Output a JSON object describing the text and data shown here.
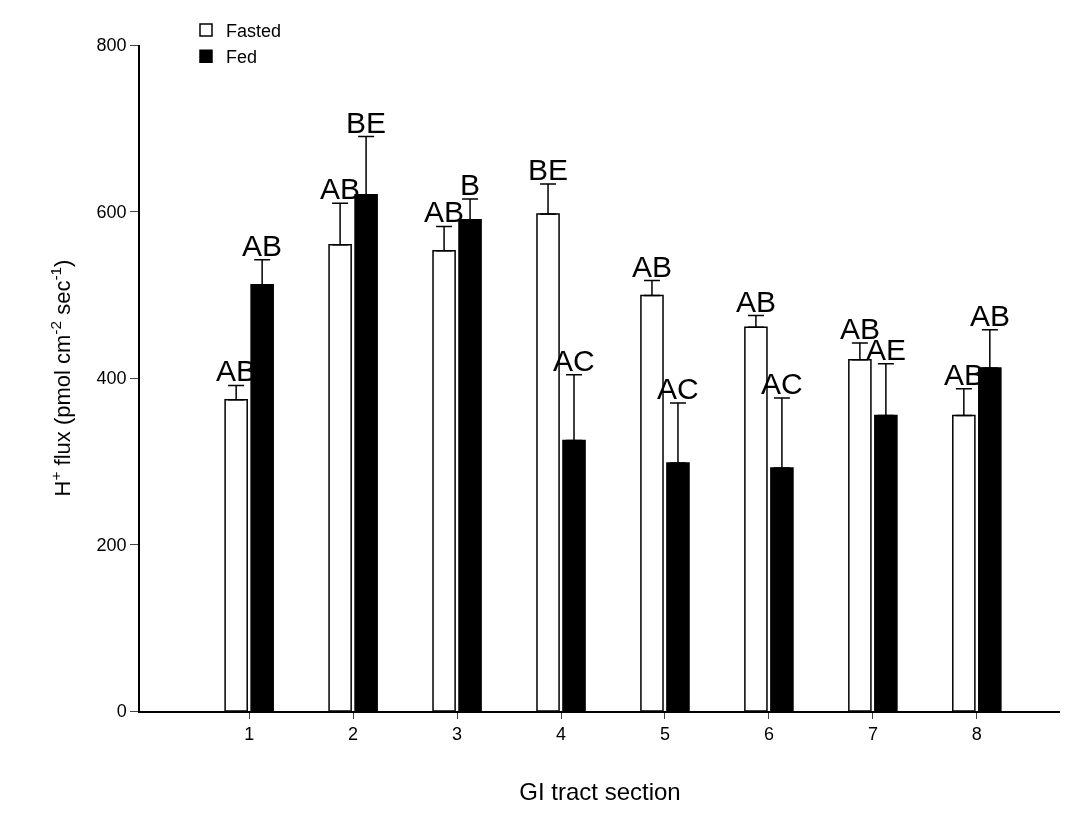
{
  "chart_data": {
    "type": "bar",
    "xlabel": "GI tract section",
    "ylabel": "H$^{+}$ flux (pmol cm$^{-2}$ sec$^{-1}$)",
    "categories": [
      "1",
      "2",
      "3",
      "4",
      "5",
      "6",
      "7",
      "8"
    ],
    "series": [
      {
        "name": "Fasted",
        "color": "#ffffff",
        "values": [
          374,
          560,
          553,
          597,
          499,
          461,
          422,
          355
        ],
        "errors": [
          [
            374,
            391
          ],
          [
            560,
            610
          ],
          [
            553,
            582
          ],
          [
            597,
            633
          ],
          [
            499,
            517
          ],
          [
            461,
            475
          ],
          [
            422,
            442
          ],
          [
            355,
            387
          ]
        ],
        "value_labels": [
          "AB",
          "AB",
          "AB",
          "BE",
          "AB",
          "AB",
          "AB",
          "AB"
        ]
      },
      {
        "name": "Fed",
        "color": "#000000",
        "values": [
          512,
          620,
          590,
          325,
          298,
          292,
          355,
          412
        ],
        "errors": [
          [
            512,
            542
          ],
          [
            620,
            690
          ],
          [
            590,
            615
          ],
          [
            325,
            404
          ],
          [
            298,
            370
          ],
          [
            292,
            376
          ],
          [
            355,
            417
          ],
          [
            412,
            458
          ]
        ],
        "value_labels": [
          "AB",
          "BE",
          "B",
          "AC",
          "AC",
          "AC",
          "AE",
          "AB"
        ]
      }
    ],
    "ylim": [
      0,
      800
    ],
    "yticks": [
      0,
      200,
      400,
      600,
      800
    ],
    "grid": false,
    "legend": "top left"
  }
}
